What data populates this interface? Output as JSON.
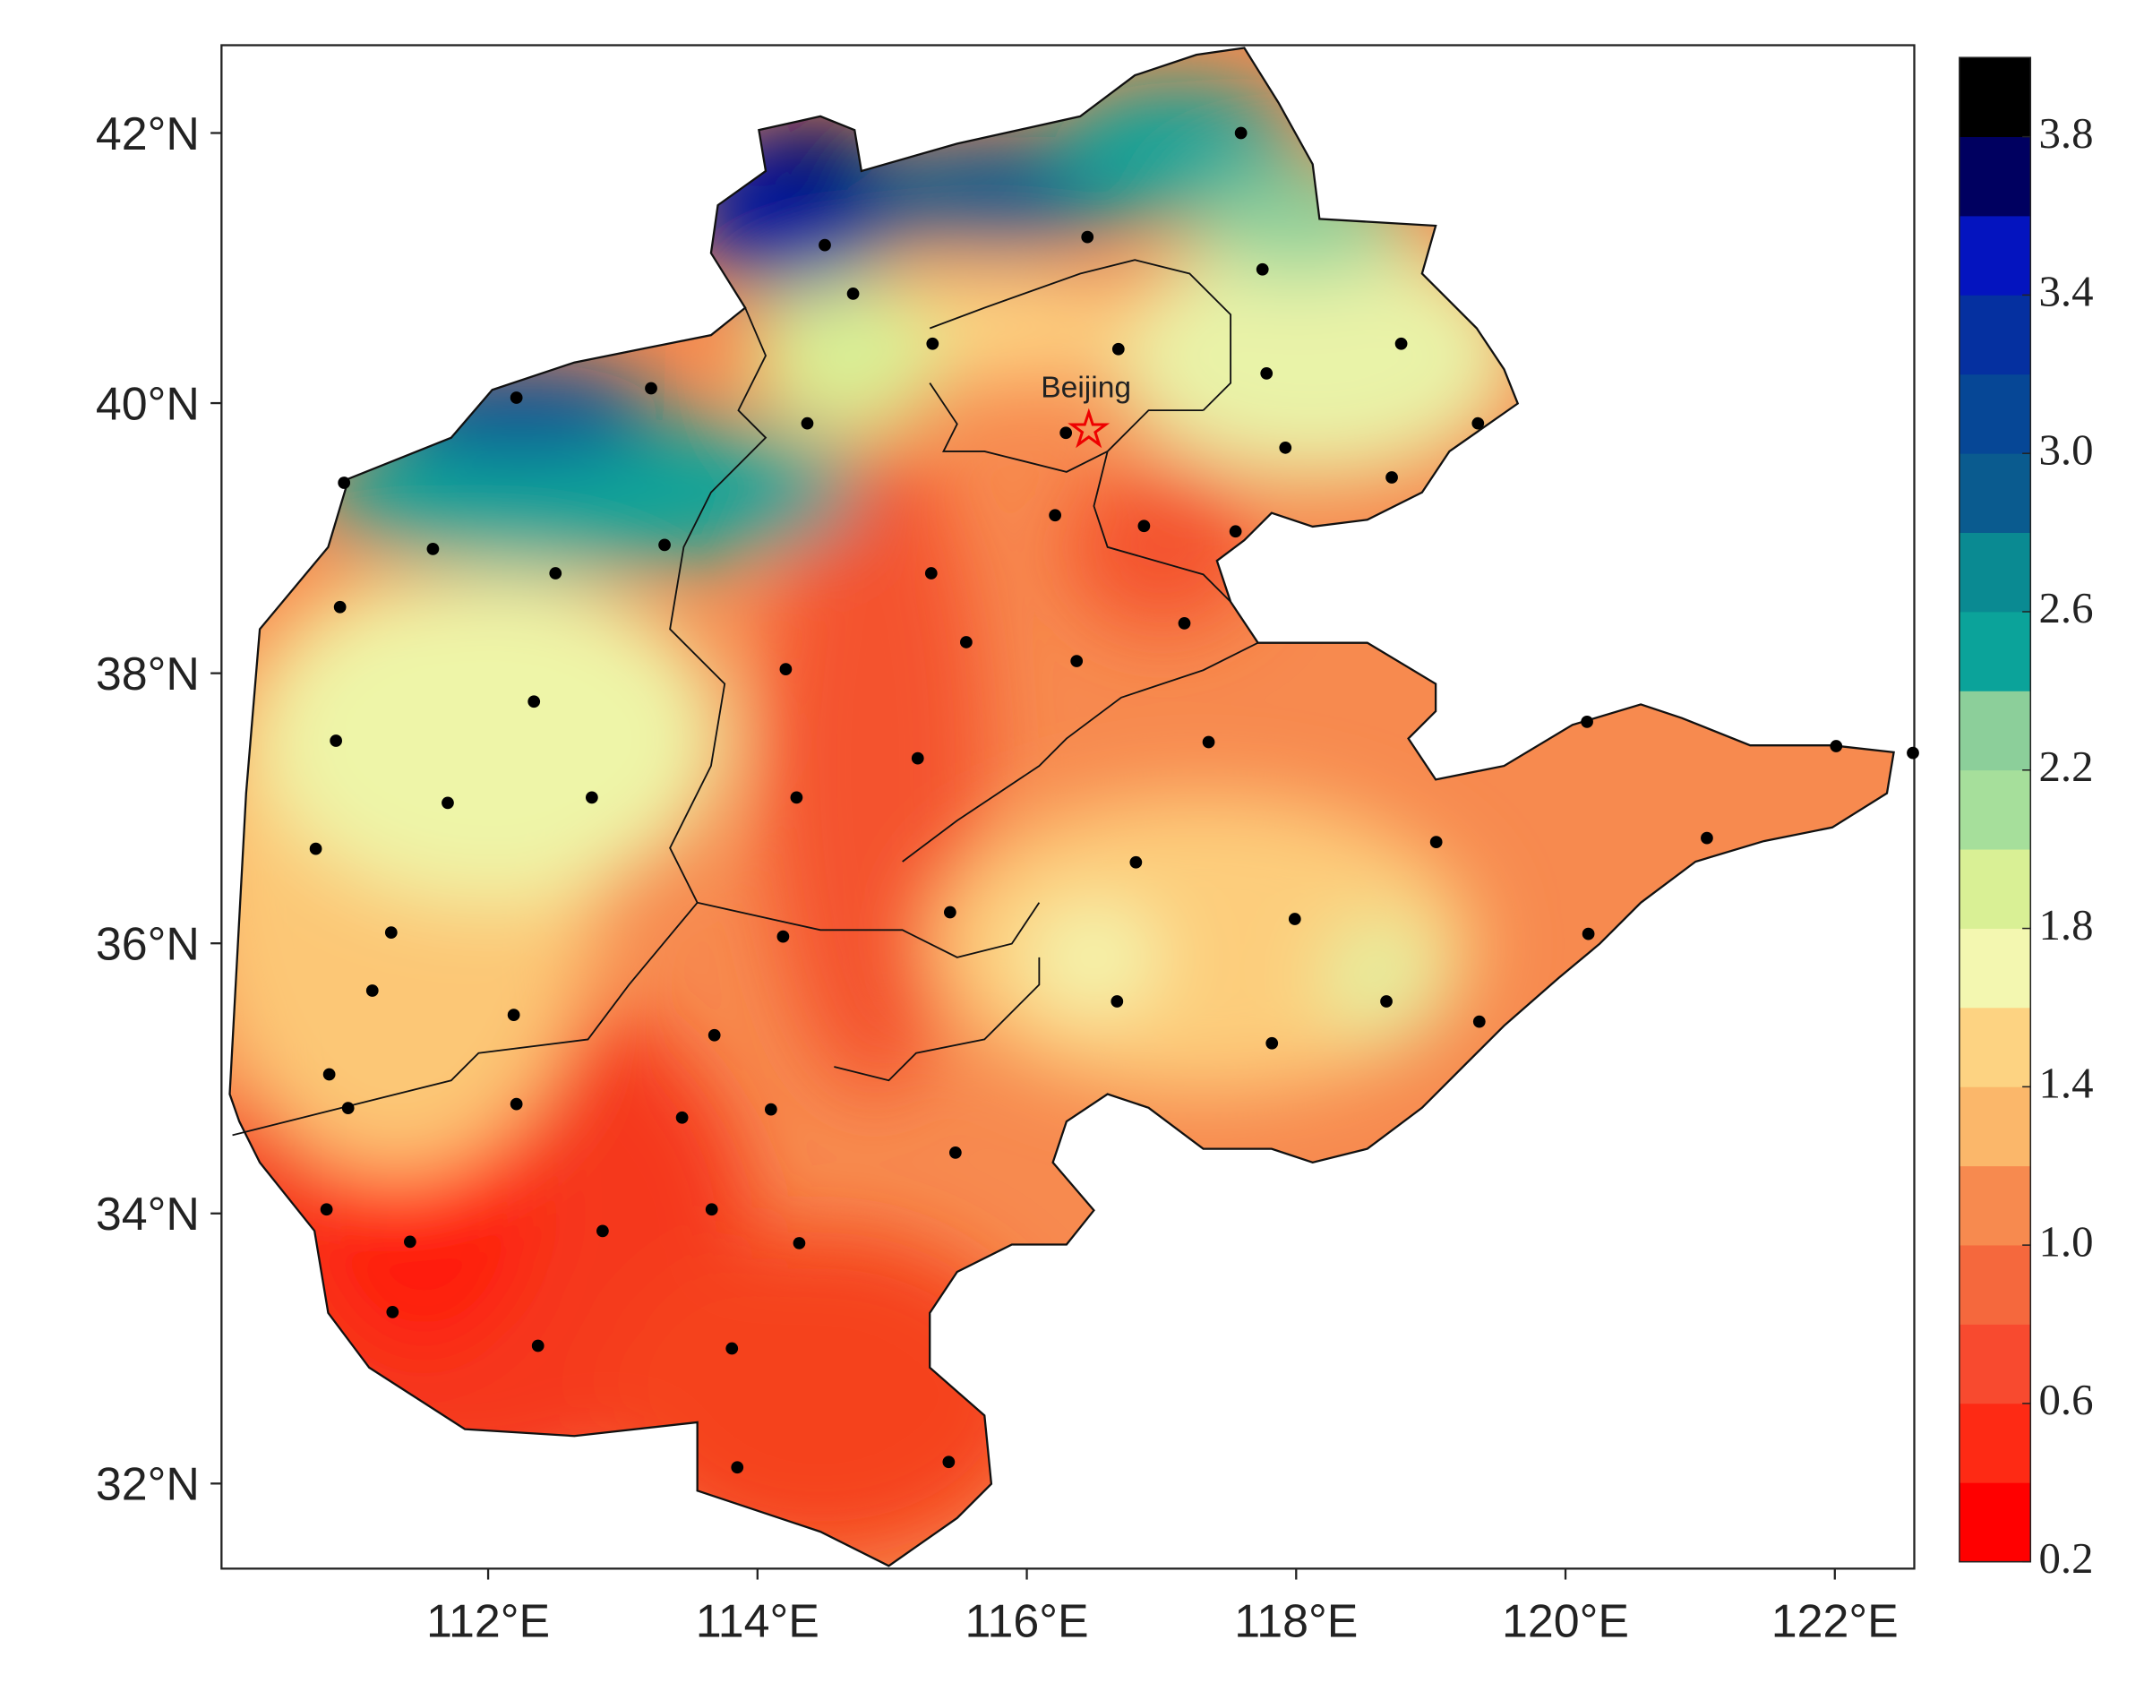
{
  "map": {
    "xlim": [
      110.02,
      122.59
    ],
    "ylim": [
      31.37,
      42.65
    ],
    "xticks": [
      {
        "value": 112,
        "label": "112°E"
      },
      {
        "value": 114,
        "label": "114°E"
      },
      {
        "value": 116,
        "label": "116°E"
      },
      {
        "value": 118,
        "label": "118°E"
      },
      {
        "value": 120,
        "label": "120°E"
      },
      {
        "value": 122,
        "label": "122°E"
      }
    ],
    "yticks": [
      {
        "value": 32,
        "label": "32°N"
      },
      {
        "value": 34,
        "label": "34°N"
      },
      {
        "value": 36,
        "label": "36°N"
      },
      {
        "value": 38,
        "label": "38°N"
      },
      {
        "value": 40,
        "label": "40°N"
      },
      {
        "value": 42,
        "label": "42°N"
      }
    ],
    "city": {
      "label": "Beijing",
      "lon": 116.46,
      "lat": 39.8
    },
    "stations": [
      [
        117.59,
        42.0
      ],
      [
        116.45,
        41.23
      ],
      [
        114.5,
        41.17
      ],
      [
        117.75,
        40.99
      ],
      [
        114.71,
        40.81
      ],
      [
        115.3,
        40.44
      ],
      [
        118.78,
        40.44
      ],
      [
        116.68,
        40.4
      ],
      [
        117.78,
        40.22
      ],
      [
        113.21,
        40.11
      ],
      [
        112.21,
        40.04
      ],
      [
        114.37,
        39.85
      ],
      [
        119.35,
        39.85
      ],
      [
        116.29,
        39.78
      ],
      [
        117.92,
        39.67
      ],
      [
        110.93,
        39.41
      ],
      [
        118.71,
        39.45
      ],
      [
        116.21,
        39.17
      ],
      [
        116.87,
        39.09
      ],
      [
        117.55,
        39.05
      ],
      [
        111.59,
        38.92
      ],
      [
        113.31,
        38.95
      ],
      [
        112.5,
        38.74
      ],
      [
        115.29,
        38.74
      ],
      [
        110.9,
        38.49
      ],
      [
        117.17,
        38.37
      ],
      [
        115.55,
        38.23
      ],
      [
        116.37,
        38.09
      ],
      [
        114.21,
        38.03
      ],
      [
        112.34,
        37.79
      ],
      [
        120.16,
        37.64
      ],
      [
        110.87,
        37.5
      ],
      [
        117.35,
        37.49
      ],
      [
        115.19,
        37.37
      ],
      [
        122.01,
        37.46
      ],
      [
        122.58,
        37.41
      ],
      [
        114.29,
        37.08
      ],
      [
        112.77,
        37.08
      ],
      [
        111.7,
        37.04
      ],
      [
        110.72,
        36.7
      ],
      [
        119.04,
        36.75
      ],
      [
        121.05,
        36.78
      ],
      [
        116.81,
        36.6
      ],
      [
        115.43,
        36.23
      ],
      [
        117.99,
        36.18
      ],
      [
        111.28,
        36.08
      ],
      [
        120.17,
        36.07
      ],
      [
        114.19,
        36.05
      ],
      [
        111.14,
        35.65
      ],
      [
        116.67,
        35.57
      ],
      [
        118.67,
        35.57
      ],
      [
        112.19,
        35.47
      ],
      [
        113.68,
        35.32
      ],
      [
        119.36,
        35.42
      ],
      [
        117.82,
        35.26
      ],
      [
        110.82,
        35.03
      ],
      [
        110.96,
        34.78
      ],
      [
        112.21,
        34.81
      ],
      [
        114.1,
        34.77
      ],
      [
        113.44,
        34.71
      ],
      [
        115.47,
        34.45
      ],
      [
        110.8,
        34.03
      ],
      [
        113.66,
        34.03
      ],
      [
        111.42,
        33.79
      ],
      [
        112.85,
        33.87
      ],
      [
        114.31,
        33.78
      ],
      [
        111.29,
        33.27
      ],
      [
        112.37,
        33.02
      ],
      [
        113.81,
        33.0
      ],
      [
        115.42,
        32.16
      ],
      [
        113.85,
        32.12
      ]
    ],
    "colorbar": {
      "bounds": [
        0.2,
        0.4,
        0.6,
        0.8,
        1.0,
        1.2,
        1.4,
        1.6,
        1.8,
        2.0,
        2.2,
        2.4,
        2.6,
        2.8,
        3.0,
        3.2,
        3.4,
        3.6,
        3.8,
        4.0
      ],
      "colors": [
        "#ff0000",
        "#fe2a14",
        "#f84a2f",
        "#f5683d",
        "#f78a4f",
        "#fbb76a",
        "#fdd382",
        "#f3f7b0",
        "#d9f095",
        "#a6df9b",
        "#8ccf9a",
        "#0ba39a",
        "#0a8a92",
        "#0a5b8f",
        "#064796",
        "#0530a0",
        "#0414bf",
        "#000060",
        "#000000"
      ],
      "ticks": [
        0.2,
        0.6,
        {
          "value": 1.0,
          "label": "1.0"
        },
        1.4,
        1.8,
        2.2,
        2.6,
        {
          "value": 3.0,
          "label": "3.0"
        },
        3.4,
        3.8
      ]
    }
  }
}
